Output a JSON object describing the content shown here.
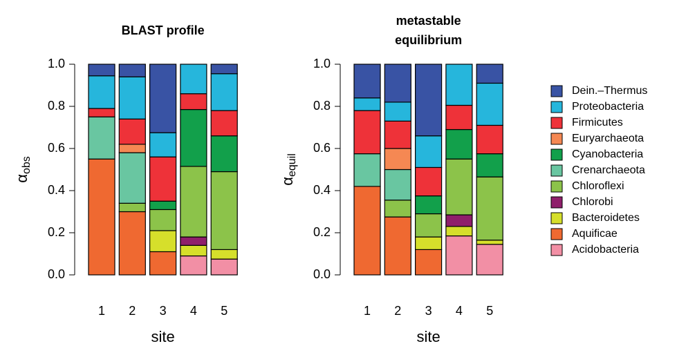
{
  "chart_data": [
    {
      "type": "stacked-bar",
      "title": [
        "BLAST profile"
      ],
      "x_label": "site",
      "y_label": {
        "symbol": "α",
        "subscript": "obs"
      },
      "categories": [
        "1",
        "2",
        "3",
        "4",
        "5"
      ],
      "ylim": [
        0,
        1
      ],
      "yticks": [
        {
          "value": 0,
          "label": "0.0"
        },
        {
          "value": 0.2,
          "label": "0.2"
        },
        {
          "value": 0.4,
          "label": "0.4"
        },
        {
          "value": 0.6,
          "label": "0.6"
        },
        {
          "value": 0.8,
          "label": "0.8"
        },
        {
          "value": 1,
          "label": "1.0"
        }
      ],
      "series": [
        {
          "name": "Acidobacteria",
          "color": "#f28fa5",
          "values": [
            null,
            null,
            null,
            0.09,
            0.075
          ]
        },
        {
          "name": "Aquificae",
          "color": "#ef6931",
          "values": [
            0.55,
            0.3,
            0.11,
            null,
            null
          ]
        },
        {
          "name": "Bacteroidetes",
          "color": "#d6df2b",
          "values": [
            null,
            null,
            0.1,
            0.05,
            0.045
          ]
        },
        {
          "name": "Chlorobi",
          "color": "#8f1f6b",
          "values": [
            null,
            null,
            null,
            0.04,
            null
          ]
        },
        {
          "name": "Chloroflexi",
          "color": "#8cc34a",
          "values": [
            null,
            0.04,
            0.1,
            0.335,
            0.37
          ]
        },
        {
          "name": "Crenarchaeota",
          "color": "#69c6a1",
          "values": [
            0.2,
            0.24,
            null,
            null,
            null
          ]
        },
        {
          "name": "Cyanobacteria",
          "color": "#12a04b",
          "values": [
            null,
            null,
            0.04,
            0.27,
            0.17
          ]
        },
        {
          "name": "Euryarchaeota",
          "color": "#f58853",
          "values": [
            null,
            0.04,
            null,
            null,
            null
          ]
        },
        {
          "name": "Firmicutes",
          "color": "#ee3239",
          "values": [
            0.04,
            0.12,
            0.21,
            0.075,
            0.12
          ]
        },
        {
          "name": "Proteobacteria",
          "color": "#26b6dc",
          "values": [
            0.155,
            0.2,
            0.115,
            0.14,
            0.175
          ]
        },
        {
          "name": "Dein.–Thermus",
          "color": "#3953a4",
          "values": [
            0.055,
            0.06,
            0.325,
            null,
            0.045
          ]
        }
      ]
    },
    {
      "type": "stacked-bar",
      "title": [
        "metastable",
        "equilibrium"
      ],
      "x_label": "site",
      "y_label": {
        "symbol": "α",
        "subscript": "equil"
      },
      "categories": [
        "1",
        "2",
        "3",
        "4",
        "5"
      ],
      "ylim": [
        0,
        1
      ],
      "yticks": [
        {
          "value": 0,
          "label": "0.0"
        },
        {
          "value": 0.2,
          "label": "0.2"
        },
        {
          "value": 0.4,
          "label": "0.4"
        },
        {
          "value": 0.6,
          "label": "0.6"
        },
        {
          "value": 0.8,
          "label": "0.8"
        },
        {
          "value": 1,
          "label": "1.0"
        }
      ],
      "series": [
        {
          "color": "#f28fa5",
          "values": [
            null,
            null,
            null,
            0.185,
            0.145
          ]
        },
        {
          "color": "#ef6931",
          "values": [
            0.42,
            0.275,
            0.12,
            null,
            null
          ]
        },
        {
          "color": "#d6df2b",
          "values": [
            null,
            null,
            0.06,
            0.045,
            0.02
          ]
        },
        {
          "color": "#8f1f6b",
          "values": [
            null,
            null,
            null,
            0.055,
            null
          ]
        },
        {
          "color": "#8cc34a",
          "values": [
            null,
            0.08,
            0.11,
            0.265,
            0.3
          ]
        },
        {
          "color": "#69c6a1",
          "values": [
            0.155,
            0.145,
            null,
            null,
            null
          ]
        },
        {
          "color": "#12a04b",
          "values": [
            null,
            null,
            0.085,
            0.14,
            0.11
          ]
        },
        {
          "color": "#f58853",
          "values": [
            null,
            0.1,
            null,
            null,
            null
          ]
        },
        {
          "color": "#ee3239",
          "values": [
            0.205,
            0.13,
            0.135,
            0.115,
            0.135
          ]
        },
        {
          "color": "#26b6dc",
          "values": [
            0.06,
            0.09,
            0.15,
            0.195,
            0.2
          ]
        },
        {
          "color": "#3953a4",
          "values": [
            0.16,
            0.18,
            0.34,
            null,
            0.09
          ]
        }
      ]
    }
  ]
}
